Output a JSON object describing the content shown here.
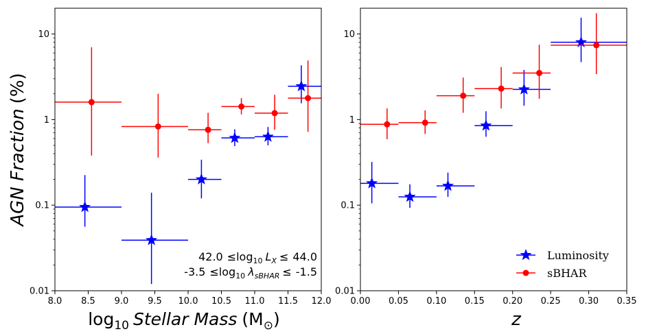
{
  "chart_data": [
    {
      "type": "scatter",
      "panel": "left",
      "xscale": "linear",
      "yscale": "log",
      "xlim": [
        8.0,
        12.0
      ],
      "ylim": [
        0.01,
        20
      ],
      "xticks": [
        "8.0",
        "8.5",
        "9.0",
        "9.5",
        "10.0",
        "10.5",
        "11.0",
        "11.5",
        "12.0"
      ],
      "yticks": [
        "0.01",
        "0.1",
        "1",
        "10"
      ],
      "xlabel_main": "log",
      "xlabel_sub": "10",
      "xlabel_italic": "Stellar Mass",
      "xlabel_unit_open": "(M",
      "xlabel_unit_sub": "⊙",
      "xlabel_unit_close": ")",
      "ylabel_italic": "AGN Fraction",
      "ylabel_unit": "(%)",
      "annotation": {
        "line1": {
          "low": "42.0",
          "op": "≤log",
          "sub": "10",
          "var": "L",
          "varsub": "X",
          "op2": "≤",
          "high": "44.0"
        },
        "line2": {
          "low": "-3.5",
          "op": "≤log",
          "sub": "10",
          "var": "λ",
          "varsub": "sBHAR",
          "op2": "≤",
          "high": "-1.5"
        }
      },
      "series": [
        {
          "name": "Luminosity",
          "color": "#0000ff",
          "marker": "star",
          "points": [
            {
              "x": 8.45,
              "y": 0.095,
              "xerr": [
                8.0,
                9.0
              ],
              "yerr": [
                0.056,
                0.225
              ]
            },
            {
              "x": 9.45,
              "y": 0.039,
              "xerr": [
                9.0,
                10.0
              ],
              "yerr": [
                0.012,
                0.14
              ]
            },
            {
              "x": 10.2,
              "y": 0.2,
              "xerr": [
                10.0,
                10.5
              ],
              "yerr": [
                0.12,
                0.34
              ]
            },
            {
              "x": 10.7,
              "y": 0.61,
              "xerr": [
                10.5,
                11.0
              ],
              "yerr": [
                0.49,
                0.77
              ]
            },
            {
              "x": 11.2,
              "y": 0.63,
              "xerr": [
                11.0,
                11.5
              ],
              "yerr": [
                0.5,
                0.82
              ]
            },
            {
              "x": 11.7,
              "y": 2.45,
              "xerr": [
                11.5,
                12.0
              ],
              "yerr": [
                1.55,
                4.3
              ]
            }
          ]
        },
        {
          "name": "sBHAR",
          "color": "#ff0000",
          "marker": "circle",
          "points": [
            {
              "x": 8.55,
              "y": 1.6,
              "xerr": [
                8.0,
                9.0
              ],
              "yerr": [
                0.38,
                7.0
              ]
            },
            {
              "x": 9.55,
              "y": 0.83,
              "xerr": [
                9.0,
                10.0
              ],
              "yerr": [
                0.36,
                2.0
              ]
            },
            {
              "x": 10.3,
              "y": 0.76,
              "xerr": [
                10.0,
                10.5
              ],
              "yerr": [
                0.53,
                1.2
              ]
            },
            {
              "x": 10.8,
              "y": 1.42,
              "xerr": [
                10.5,
                11.0
              ],
              "yerr": [
                1.15,
                1.78
              ]
            },
            {
              "x": 11.3,
              "y": 1.19,
              "xerr": [
                11.0,
                11.5
              ],
              "yerr": [
                0.76,
                1.95
              ]
            },
            {
              "x": 11.8,
              "y": 1.78,
              "xerr": [
                11.5,
                12.0
              ],
              "yerr": [
                0.72,
                4.9
              ]
            }
          ]
        }
      ]
    },
    {
      "type": "scatter",
      "panel": "right",
      "xscale": "linear",
      "yscale": "log",
      "xlim": [
        0.0,
        0.35
      ],
      "ylim": [
        0.01,
        20
      ],
      "xticks": [
        "0.00",
        "0.05",
        "0.10",
        "0.15",
        "0.20",
        "0.25",
        "0.30",
        "0.35"
      ],
      "yticks": [
        "0.01",
        "0.1",
        "1",
        "10"
      ],
      "xlabel": "z",
      "legend": {
        "location": "lower-right",
        "entries": [
          "Luminosity",
          "sBHAR"
        ]
      },
      "series": [
        {
          "name": "Luminosity",
          "color": "#0000ff",
          "marker": "star",
          "points": [
            {
              "x": 0.015,
              "y": 0.18,
              "xerr": [
                0.0,
                0.05
              ],
              "yerr": [
                0.105,
                0.32
              ]
            },
            {
              "x": 0.065,
              "y": 0.125,
              "xerr": [
                0.05,
                0.1
              ],
              "yerr": [
                0.093,
                0.175
              ]
            },
            {
              "x": 0.115,
              "y": 0.168,
              "xerr": [
                0.1,
                0.15
              ],
              "yerr": [
                0.125,
                0.24
              ]
            },
            {
              "x": 0.165,
              "y": 0.85,
              "xerr": [
                0.15,
                0.2
              ],
              "yerr": [
                0.63,
                1.25
              ]
            },
            {
              "x": 0.215,
              "y": 2.25,
              "xerr": [
                0.2,
                0.25
              ],
              "yerr": [
                1.45,
                3.8
              ]
            },
            {
              "x": 0.29,
              "y": 8.0,
              "xerr": [
                0.25,
                0.35
              ],
              "yerr": [
                4.7,
                15.5
              ]
            }
          ]
        },
        {
          "name": "sBHAR",
          "color": "#ff0000",
          "marker": "circle",
          "points": [
            {
              "x": 0.035,
              "y": 0.88,
              "xerr": [
                0.0,
                0.05
              ],
              "yerr": [
                0.59,
                1.35
              ]
            },
            {
              "x": 0.085,
              "y": 0.92,
              "xerr": [
                0.05,
                0.1
              ],
              "yerr": [
                0.68,
                1.28
              ]
            },
            {
              "x": 0.135,
              "y": 1.9,
              "xerr": [
                0.1,
                0.15
              ],
              "yerr": [
                1.2,
                3.1
              ]
            },
            {
              "x": 0.185,
              "y": 2.3,
              "xerr": [
                0.15,
                0.2
              ],
              "yerr": [
                1.35,
                4.1
              ]
            },
            {
              "x": 0.235,
              "y": 3.5,
              "xerr": [
                0.2,
                0.25
              ],
              "yerr": [
                1.75,
                7.5
              ]
            },
            {
              "x": 0.31,
              "y": 7.4,
              "xerr": [
                0.25,
                0.35
              ],
              "yerr": [
                3.4,
                17.5
              ]
            }
          ]
        }
      ]
    }
  ]
}
